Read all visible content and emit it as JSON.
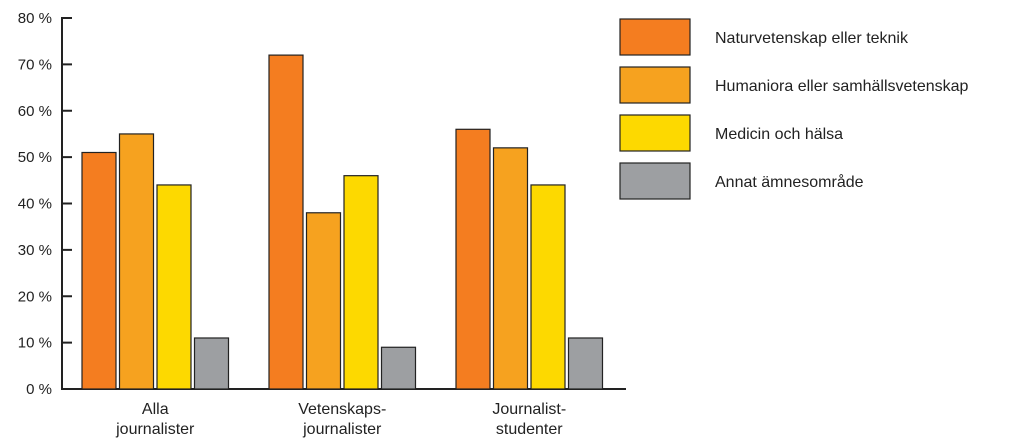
{
  "chart_data": {
    "type": "bar",
    "categories": [
      [
        "Alla",
        "journalister"
      ],
      [
        "Vetenskaps-",
        "journalister"
      ],
      [
        "Journalist-",
        "studenter"
      ]
    ],
    "series": [
      {
        "name": "Naturvetenskap eller teknik",
        "color": "#F47D20",
        "values": [
          51,
          72,
          56
        ]
      },
      {
        "name": "Humaniora eller samhällsvetenskap",
        "color": "#F6A21F",
        "values": [
          55,
          38,
          52
        ]
      },
      {
        "name": "Medicin och hälsa",
        "color": "#FDD900",
        "values": [
          44,
          46,
          44
        ]
      },
      {
        "name": "Annat ämnesområde",
        "color": "#9D9FA2",
        "values": [
          11,
          9,
          11
        ]
      }
    ],
    "ylim": [
      0,
      80
    ],
    "yticks": [
      0,
      10,
      20,
      30,
      40,
      50,
      60,
      70,
      80
    ],
    "ytick_labels": [
      "0 %",
      "10 %",
      "20 %",
      "30 %",
      "40 %",
      "50 %",
      "60 %",
      "70 %",
      "80 %"
    ],
    "legend_position": "top-right",
    "grid": false
  }
}
